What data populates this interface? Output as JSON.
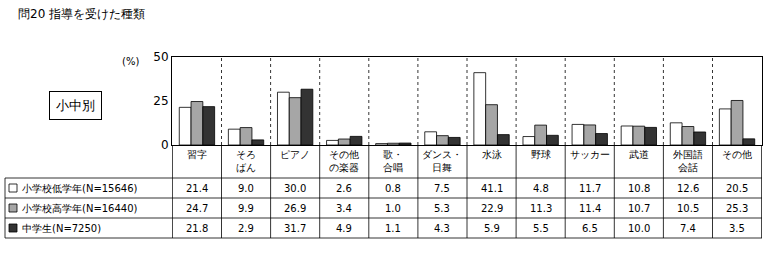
{
  "chart_data": {
    "type": "bar",
    "title": "問20 指導を受けた種類",
    "annotations": [
      "小中別"
    ],
    "y_label": "(%)",
    "categories": [
      "習字",
      "そろ\nばん",
      "ピアノ",
      "その他\nの楽器",
      "歌・\n合唱",
      "ダンス・\n日舞",
      "水泳",
      "野球",
      "サッカー",
      "武道",
      "外国語\n会話",
      "その他"
    ],
    "series": [
      {
        "name": "小学校低学年(N=15646)",
        "color": "#ffffff",
        "values": [
          21.4,
          9.0,
          30.0,
          2.6,
          0.8,
          7.5,
          41.1,
          4.8,
          11.7,
          10.8,
          12.6,
          20.5
        ],
        "value_labels": [
          "21.4",
          "9.0",
          "30.0",
          "2.6",
          "0.8",
          "7.5",
          "41.1",
          "4.8",
          "11.7",
          "10.8",
          "12.6",
          "20.5"
        ]
      },
      {
        "name": "小学校高学年(N=16440)",
        "color": "#a6a6a6",
        "values": [
          24.7,
          9.9,
          26.9,
          3.4,
          1.0,
          5.3,
          22.9,
          11.3,
          11.4,
          10.7,
          10.5,
          25.3
        ],
        "value_labels": [
          "24.7",
          "9.9",
          "26.9",
          "3.4",
          "1.0",
          "5.3",
          "22.9",
          "11.3",
          "11.4",
          "10.7",
          "10.5",
          "25.3"
        ]
      },
      {
        "name": "中学生(N=7250)",
        "color": "#333333",
        "values": [
          21.8,
          2.9,
          31.7,
          4.9,
          1.1,
          4.3,
          5.9,
          5.5,
          6.5,
          10.0,
          7.4,
          3.5
        ],
        "value_labels": [
          "21.8",
          "2.9",
          "31.7",
          "4.9",
          "1.1",
          "4.3",
          "5.9",
          "5.5",
          "6.5",
          "10.0",
          "7.4",
          "3.5"
        ]
      }
    ],
    "ylim": [
      0,
      50
    ],
    "yticks": [
      0,
      25,
      50
    ],
    "grid": false
  }
}
